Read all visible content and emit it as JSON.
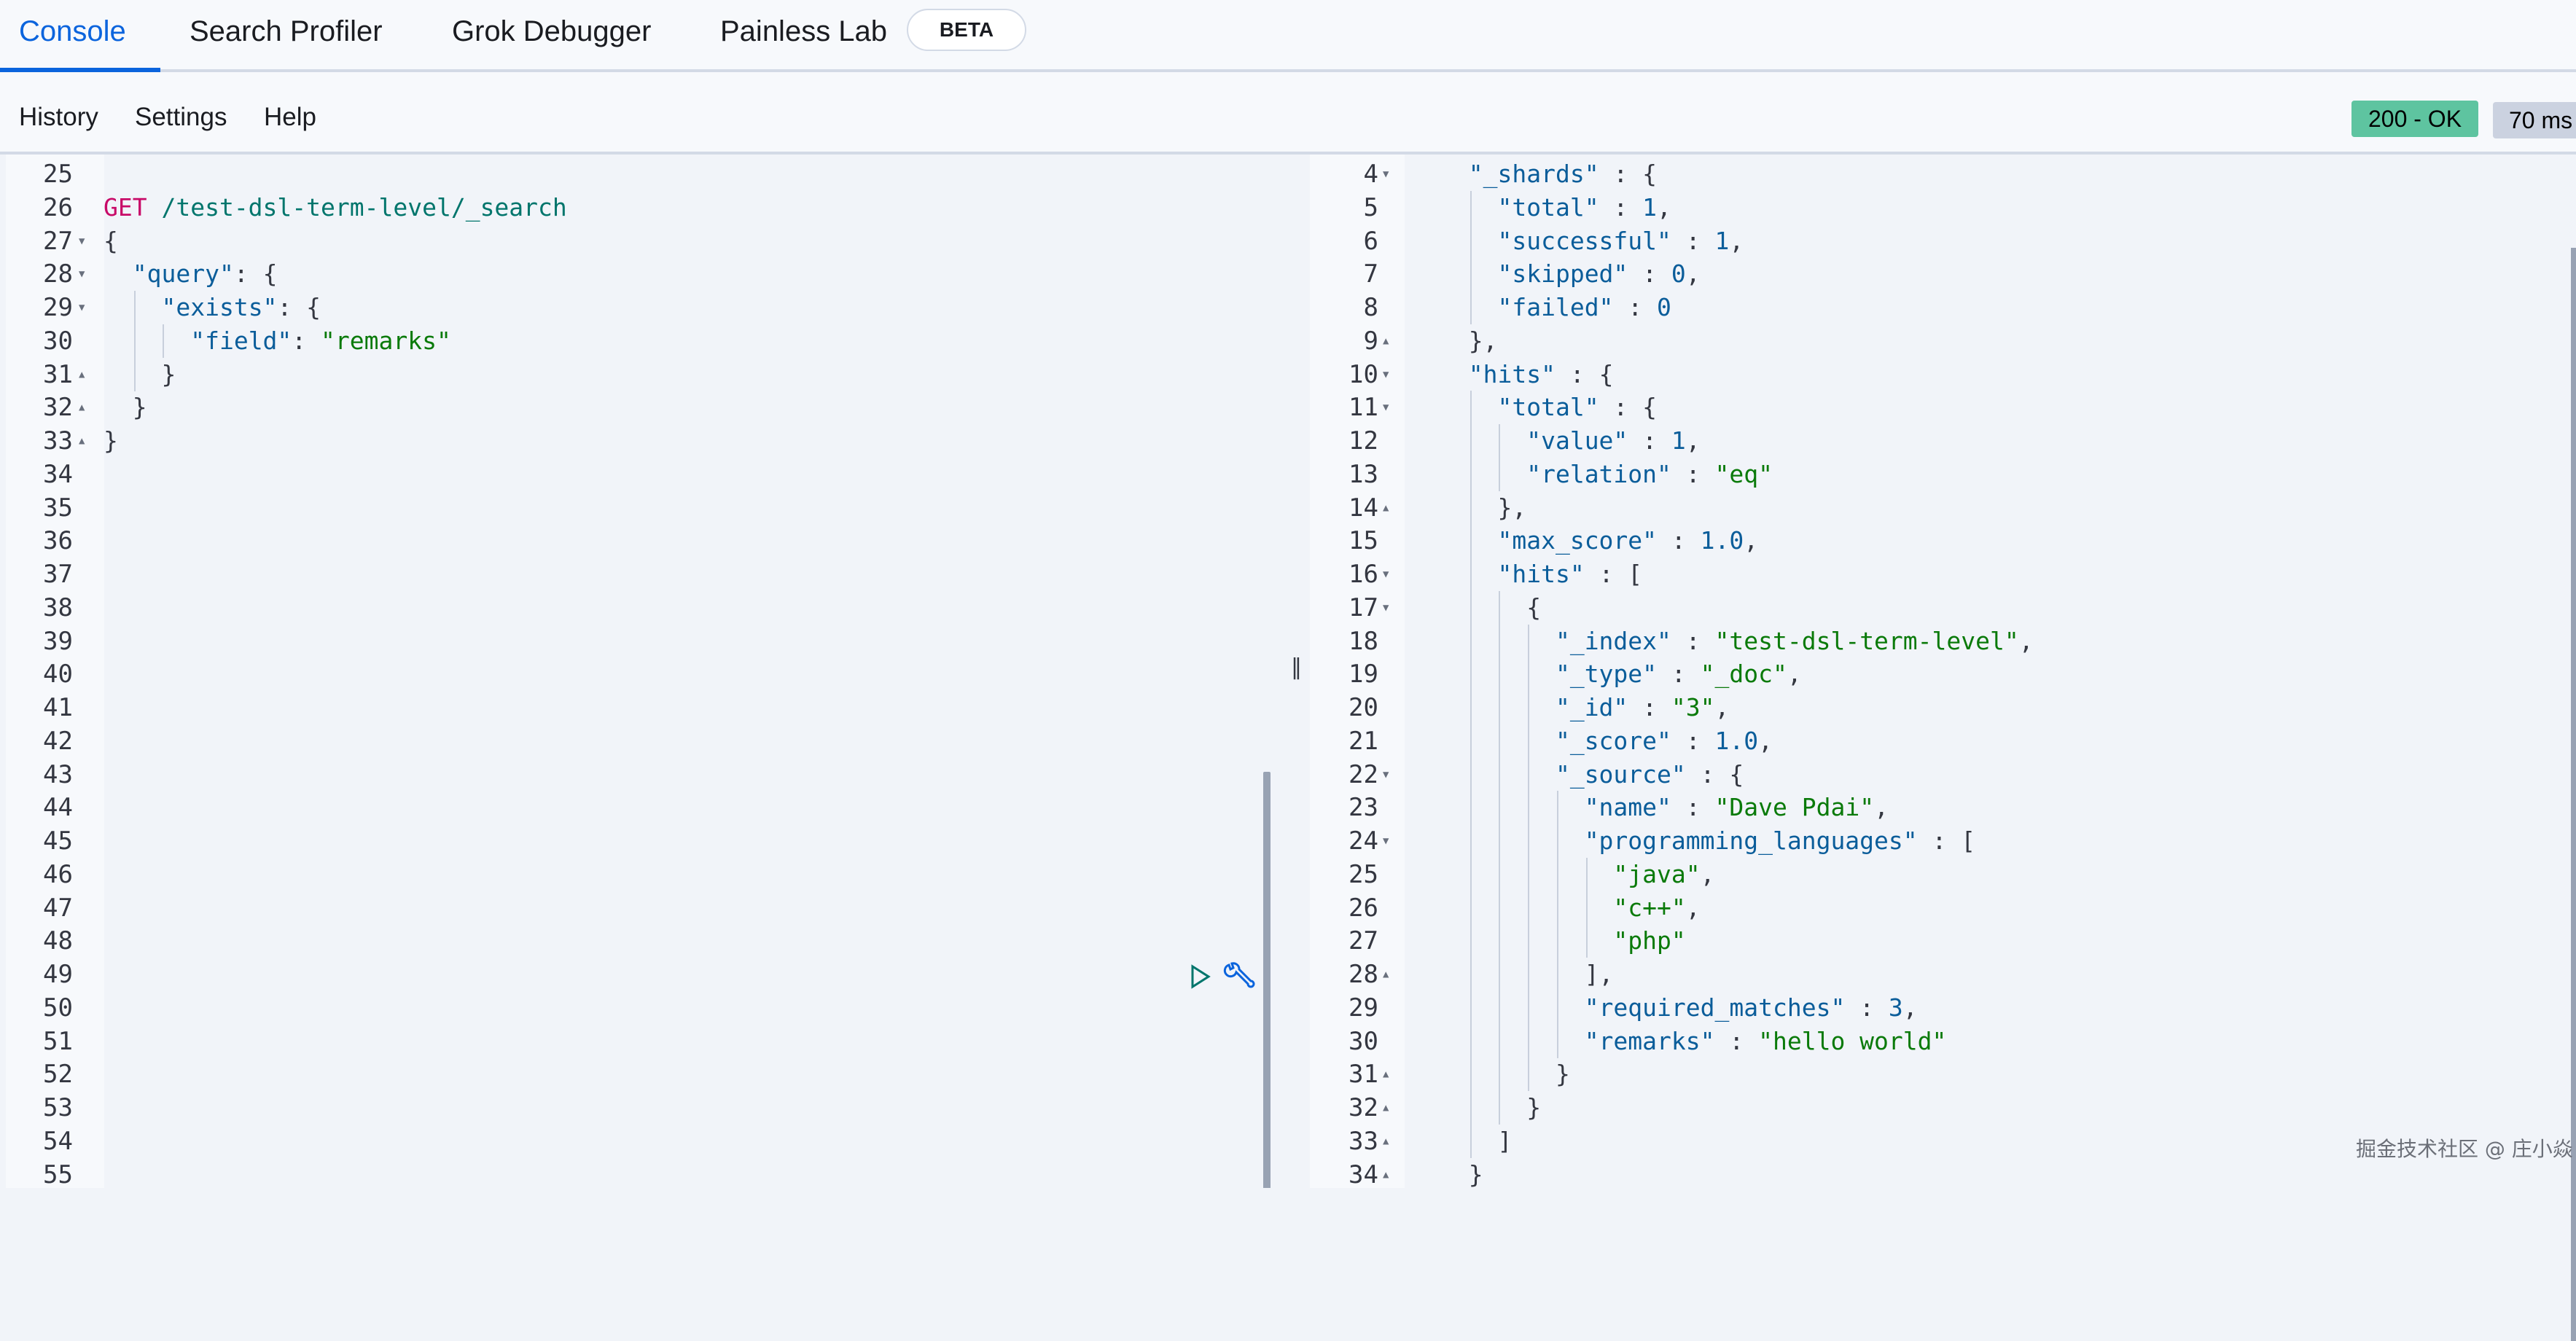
{
  "tabs": [
    {
      "label": "Console",
      "active": true
    },
    {
      "label": "Search Profiler"
    },
    {
      "label": "Grok Debugger"
    },
    {
      "label": "Painless Lab"
    }
  ],
  "beta_badge": "BETA",
  "toolbar": {
    "history": "History",
    "settings": "Settings",
    "help": "Help",
    "status": "200 - OK",
    "time": "70 ms"
  },
  "colors": {
    "accent": "#0b64dd",
    "status_ok": "#5ec4a0",
    "method": "#c80a68",
    "key": "#0b5d9a",
    "string": "#0a7a0a"
  },
  "request": {
    "lines": [
      {
        "n": "25",
        "f": "",
        "i": 0,
        "t": []
      },
      {
        "n": "26",
        "f": "",
        "i": 0,
        "t": [
          [
            "m",
            "GET"
          ],
          [
            "u",
            " /test-dsl-term-level/_search"
          ]
        ]
      },
      {
        "n": "27",
        "f": "down",
        "i": 0,
        "t": [
          [
            "p",
            "{"
          ]
        ]
      },
      {
        "n": "28",
        "f": "down",
        "i": 1,
        "t": [
          [
            "k",
            "\"query\""
          ],
          [
            "p",
            ": {"
          ]
        ]
      },
      {
        "n": "29",
        "f": "down",
        "i": 2,
        "t": [
          [
            "k",
            "\"exists\""
          ],
          [
            "p",
            ": {"
          ]
        ]
      },
      {
        "n": "30",
        "f": "",
        "i": 3,
        "t": [
          [
            "k",
            "\"field\""
          ],
          [
            "p",
            ": "
          ],
          [
            "s",
            "\"remarks\""
          ]
        ]
      },
      {
        "n": "31",
        "f": "up",
        "i": 2,
        "t": [
          [
            "p",
            "}"
          ]
        ]
      },
      {
        "n": "32",
        "f": "up",
        "i": 1,
        "t": [
          [
            "p",
            "}"
          ]
        ]
      },
      {
        "n": "33",
        "f": "up",
        "i": 0,
        "t": [
          [
            "p",
            "}"
          ]
        ]
      },
      {
        "n": "34",
        "f": "",
        "i": 0,
        "t": []
      },
      {
        "n": "35",
        "f": "",
        "i": 0,
        "t": []
      },
      {
        "n": "36",
        "f": "",
        "i": 0,
        "t": []
      },
      {
        "n": "37",
        "f": "",
        "i": 0,
        "t": []
      },
      {
        "n": "38",
        "f": "",
        "i": 0,
        "t": []
      },
      {
        "n": "39",
        "f": "",
        "i": 0,
        "t": []
      },
      {
        "n": "40",
        "f": "",
        "i": 0,
        "t": []
      },
      {
        "n": "41",
        "f": "",
        "i": 0,
        "t": []
      },
      {
        "n": "42",
        "f": "",
        "i": 0,
        "t": []
      },
      {
        "n": "43",
        "f": "",
        "i": 0,
        "t": []
      },
      {
        "n": "44",
        "f": "",
        "i": 0,
        "t": []
      },
      {
        "n": "45",
        "f": "",
        "i": 0,
        "t": []
      },
      {
        "n": "46",
        "f": "",
        "i": 0,
        "t": []
      },
      {
        "n": "47",
        "f": "",
        "i": 0,
        "t": []
      },
      {
        "n": "48",
        "f": "",
        "i": 0,
        "t": []
      },
      {
        "n": "49",
        "f": "",
        "i": 0,
        "t": []
      },
      {
        "n": "50",
        "f": "",
        "i": 0,
        "t": []
      },
      {
        "n": "51",
        "f": "",
        "i": 0,
        "t": []
      },
      {
        "n": "52",
        "f": "",
        "i": 0,
        "t": []
      },
      {
        "n": "53",
        "f": "",
        "i": 0,
        "t": []
      },
      {
        "n": "54",
        "f": "",
        "i": 0,
        "t": []
      },
      {
        "n": "55",
        "f": "",
        "i": 0,
        "t": []
      }
    ]
  },
  "response": {
    "lines": [
      {
        "n": "4",
        "f": "down",
        "i": 1,
        "t": [
          [
            "k",
            "\"_shards\""
          ],
          [
            "p",
            " : {"
          ]
        ]
      },
      {
        "n": "5",
        "f": "",
        "i": 2,
        "t": [
          [
            "k",
            "\"total\""
          ],
          [
            "p",
            " : "
          ],
          [
            "n",
            "1"
          ],
          [
            "p",
            ","
          ]
        ]
      },
      {
        "n": "6",
        "f": "",
        "i": 2,
        "t": [
          [
            "k",
            "\"successful\""
          ],
          [
            "p",
            " : "
          ],
          [
            "n",
            "1"
          ],
          [
            "p",
            ","
          ]
        ]
      },
      {
        "n": "7",
        "f": "",
        "i": 2,
        "t": [
          [
            "k",
            "\"skipped\""
          ],
          [
            "p",
            " : "
          ],
          [
            "n",
            "0"
          ],
          [
            "p",
            ","
          ]
        ]
      },
      {
        "n": "8",
        "f": "",
        "i": 2,
        "t": [
          [
            "k",
            "\"failed\""
          ],
          [
            "p",
            " : "
          ],
          [
            "n",
            "0"
          ]
        ]
      },
      {
        "n": "9",
        "f": "up",
        "i": 1,
        "t": [
          [
            "p",
            "},"
          ]
        ]
      },
      {
        "n": "10",
        "f": "down",
        "i": 1,
        "t": [
          [
            "k",
            "\"hits\""
          ],
          [
            "p",
            " : {"
          ]
        ]
      },
      {
        "n": "11",
        "f": "down",
        "i": 2,
        "t": [
          [
            "k",
            "\"total\""
          ],
          [
            "p",
            " : {"
          ]
        ]
      },
      {
        "n": "12",
        "f": "",
        "i": 3,
        "t": [
          [
            "k",
            "\"value\""
          ],
          [
            "p",
            " : "
          ],
          [
            "n",
            "1"
          ],
          [
            "p",
            ","
          ]
        ]
      },
      {
        "n": "13",
        "f": "",
        "i": 3,
        "t": [
          [
            "k",
            "\"relation\""
          ],
          [
            "p",
            " : "
          ],
          [
            "s",
            "\"eq\""
          ]
        ]
      },
      {
        "n": "14",
        "f": "up",
        "i": 2,
        "t": [
          [
            "p",
            "},"
          ]
        ]
      },
      {
        "n": "15",
        "f": "",
        "i": 2,
        "t": [
          [
            "k",
            "\"max_score\""
          ],
          [
            "p",
            " : "
          ],
          [
            "n",
            "1.0"
          ],
          [
            "p",
            ","
          ]
        ]
      },
      {
        "n": "16",
        "f": "down",
        "i": 2,
        "t": [
          [
            "k",
            "\"hits\""
          ],
          [
            "p",
            " : ["
          ]
        ]
      },
      {
        "n": "17",
        "f": "down",
        "i": 3,
        "t": [
          [
            "p",
            "{"
          ]
        ]
      },
      {
        "n": "18",
        "f": "",
        "i": 4,
        "t": [
          [
            "k",
            "\"_index\""
          ],
          [
            "p",
            " : "
          ],
          [
            "s",
            "\"test-dsl-term-level\""
          ],
          [
            "p",
            ","
          ]
        ]
      },
      {
        "n": "19",
        "f": "",
        "i": 4,
        "t": [
          [
            "k",
            "\"_type\""
          ],
          [
            "p",
            " : "
          ],
          [
            "s",
            "\"_doc\""
          ],
          [
            "p",
            ","
          ]
        ]
      },
      {
        "n": "20",
        "f": "",
        "i": 4,
        "t": [
          [
            "k",
            "\"_id\""
          ],
          [
            "p",
            " : "
          ],
          [
            "s",
            "\"3\""
          ],
          [
            "p",
            ","
          ]
        ]
      },
      {
        "n": "21",
        "f": "",
        "i": 4,
        "t": [
          [
            "k",
            "\"_score\""
          ],
          [
            "p",
            " : "
          ],
          [
            "n",
            "1.0"
          ],
          [
            "p",
            ","
          ]
        ]
      },
      {
        "n": "22",
        "f": "down",
        "i": 4,
        "t": [
          [
            "k",
            "\"_source\""
          ],
          [
            "p",
            " : {"
          ]
        ]
      },
      {
        "n": "23",
        "f": "",
        "i": 5,
        "t": [
          [
            "k",
            "\"name\""
          ],
          [
            "p",
            " : "
          ],
          [
            "s",
            "\"Dave Pdai\""
          ],
          [
            "p",
            ","
          ]
        ]
      },
      {
        "n": "24",
        "f": "down",
        "i": 5,
        "t": [
          [
            "k",
            "\"programming_languages\""
          ],
          [
            "p",
            " : ["
          ]
        ]
      },
      {
        "n": "25",
        "f": "",
        "i": 6,
        "t": [
          [
            "s",
            "\"java\""
          ],
          [
            "p",
            ","
          ]
        ]
      },
      {
        "n": "26",
        "f": "",
        "i": 6,
        "t": [
          [
            "s",
            "\"c++\""
          ],
          [
            "p",
            ","
          ]
        ]
      },
      {
        "n": "27",
        "f": "",
        "i": 6,
        "t": [
          [
            "s",
            "\"php\""
          ]
        ]
      },
      {
        "n": "28",
        "f": "up",
        "i": 5,
        "t": [
          [
            "p",
            "],"
          ]
        ]
      },
      {
        "n": "29",
        "f": "",
        "i": 5,
        "t": [
          [
            "k",
            "\"required_matches\""
          ],
          [
            "p",
            " : "
          ],
          [
            "n",
            "3"
          ],
          [
            "p",
            ","
          ]
        ]
      },
      {
        "n": "30",
        "f": "",
        "i": 5,
        "t": [
          [
            "k",
            "\"remarks\""
          ],
          [
            "p",
            " : "
          ],
          [
            "s",
            "\"hello world\""
          ]
        ]
      },
      {
        "n": "31",
        "f": "up",
        "i": 4,
        "t": [
          [
            "p",
            "}"
          ]
        ]
      },
      {
        "n": "32",
        "f": "up",
        "i": 3,
        "t": [
          [
            "p",
            "}"
          ]
        ]
      },
      {
        "n": "33",
        "f": "up",
        "i": 2,
        "t": [
          [
            "p",
            "]"
          ]
        ]
      },
      {
        "n": "34",
        "f": "up",
        "i": 1,
        "t": [
          [
            "p",
            "}"
          ]
        ]
      }
    ]
  },
  "actions": {
    "run_icon": "play-icon",
    "settings_icon": "wrench-icon"
  },
  "watermark": "掘金技术社区 @ 庄小焱"
}
